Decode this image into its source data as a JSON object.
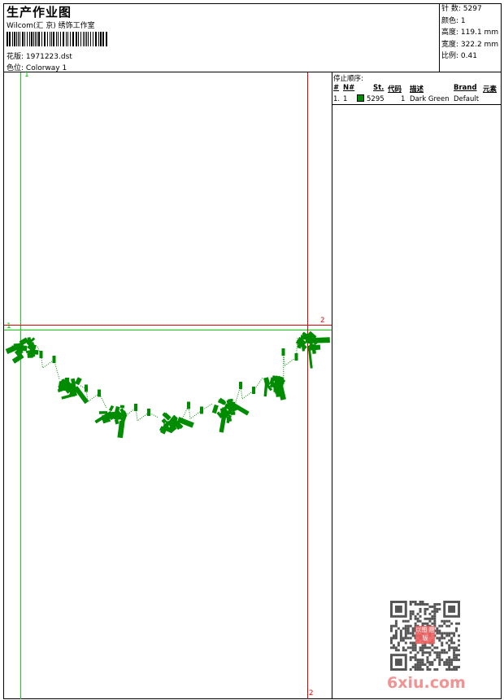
{
  "header": {
    "title": "生产作业图",
    "company": "Wilcom(汇 京) 绣饰工作室",
    "design_label": "花版:",
    "design_value": "1971223.dst",
    "colorway_label": "色位:",
    "colorway_value": "Colorway 1"
  },
  "info": {
    "stitches_label": "针 数:",
    "stitches_value": "5297",
    "colors_label": "颜色:",
    "colors_value": "1",
    "height_label": "高度:",
    "height_value": "119.1 mm",
    "width_label": "宽度:",
    "width_value": "322.2 mm",
    "scale_label": "比例:",
    "scale_value": "0.41"
  },
  "stop_sequence": {
    "title": "停止顺序:",
    "columns": [
      "#",
      "N#",
      "St.",
      "代码",
      "描述",
      "Brand",
      "元素"
    ],
    "rows": [
      {
        "index": "1.",
        "n": "1",
        "color": "#008c00",
        "stitches": "5295",
        "code": "1",
        "description": "Dark Green",
        "brand": "Default"
      }
    ]
  },
  "canvas": {
    "markers": {
      "start_top": "1",
      "start_left": "1",
      "end_top": "2",
      "end_bottom": "2"
    },
    "thread_color": "#008c00",
    "guide_start_color": "#00e000",
    "guide_end_color": "#e00000"
  },
  "watermark": {
    "text": "6xiu.com",
    "stamp": "以图 摆版"
  }
}
